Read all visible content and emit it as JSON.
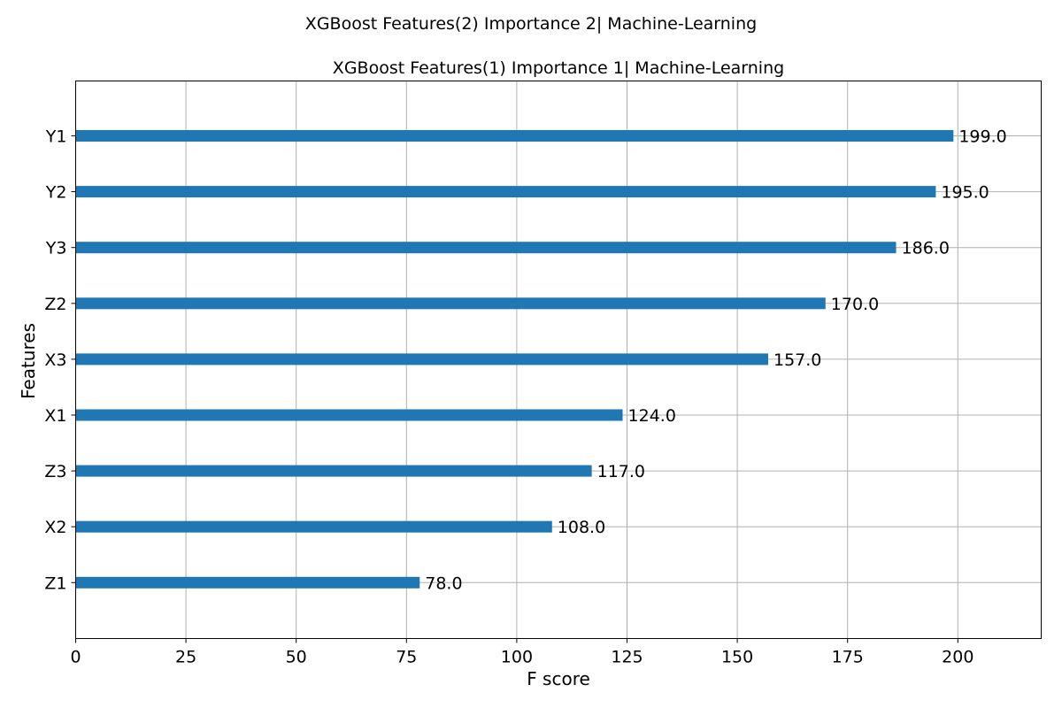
{
  "suptitle": "XGBoost Features(2) Importance 2| Machine-Learning",
  "chart_data": {
    "type": "bar",
    "orientation": "horizontal",
    "title": "XGBoost Features(1) Importance 1| Machine-Learning",
    "xlabel": "F score",
    "ylabel": "Features",
    "categories": [
      "Y1",
      "Y2",
      "Y3",
      "Z2",
      "X3",
      "X1",
      "Z3",
      "X2",
      "Z1"
    ],
    "values": [
      199.0,
      195.0,
      186.0,
      170.0,
      157.0,
      124.0,
      117.0,
      108.0,
      78.0
    ],
    "value_labels": [
      "199.0",
      "195.0",
      "186.0",
      "170.0",
      "157.0",
      "124.0",
      "117.0",
      "108.0",
      "78.0"
    ],
    "xlim": [
      0,
      218.9
    ],
    "xticks": [
      0,
      25,
      50,
      75,
      100,
      125,
      150,
      175,
      200
    ],
    "xtick_labels": [
      "0",
      "25",
      "50",
      "75",
      "100",
      "125",
      "150",
      "175",
      "200"
    ],
    "grid": true,
    "bar_color": "#1f77b4"
  }
}
